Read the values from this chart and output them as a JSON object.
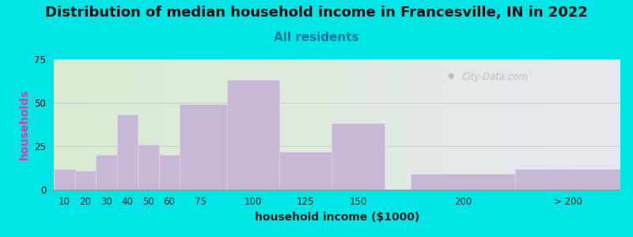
{
  "title": "Distribution of median household income in Francesville, IN in 2022",
  "subtitle": "All residents",
  "xlabel": "household income ($1000)",
  "ylabel": "households",
  "bar_labels": [
    "10",
    "20",
    "30",
    "40",
    "50",
    "60",
    "75",
    "100",
    "125",
    "150",
    "200",
    "> 200"
  ],
  "bar_lefts": [
    5,
    15,
    25,
    35,
    45,
    55,
    65,
    87.5,
    112.5,
    137.5,
    175,
    225
  ],
  "bar_widths": [
    10,
    10,
    10,
    10,
    10,
    10,
    25,
    25,
    25,
    25,
    50,
    50
  ],
  "bar_tick_positions": [
    10,
    20,
    30,
    40,
    50,
    60,
    75,
    100,
    125,
    150,
    200,
    250
  ],
  "bar_values": [
    12,
    11,
    20,
    43,
    26,
    20,
    49,
    63,
    22,
    38,
    9,
    12
  ],
  "bar_color": "#c8b8d8",
  "ylim": [
    0,
    75
  ],
  "yticks": [
    0,
    25,
    50,
    75
  ],
  "xlim": [
    5,
    275
  ],
  "bg_outer": "#00e5e5",
  "title_fontsize": 13,
  "subtitle_fontsize": 11,
  "axis_label_fontsize": 10,
  "watermark": "City-Data.com"
}
